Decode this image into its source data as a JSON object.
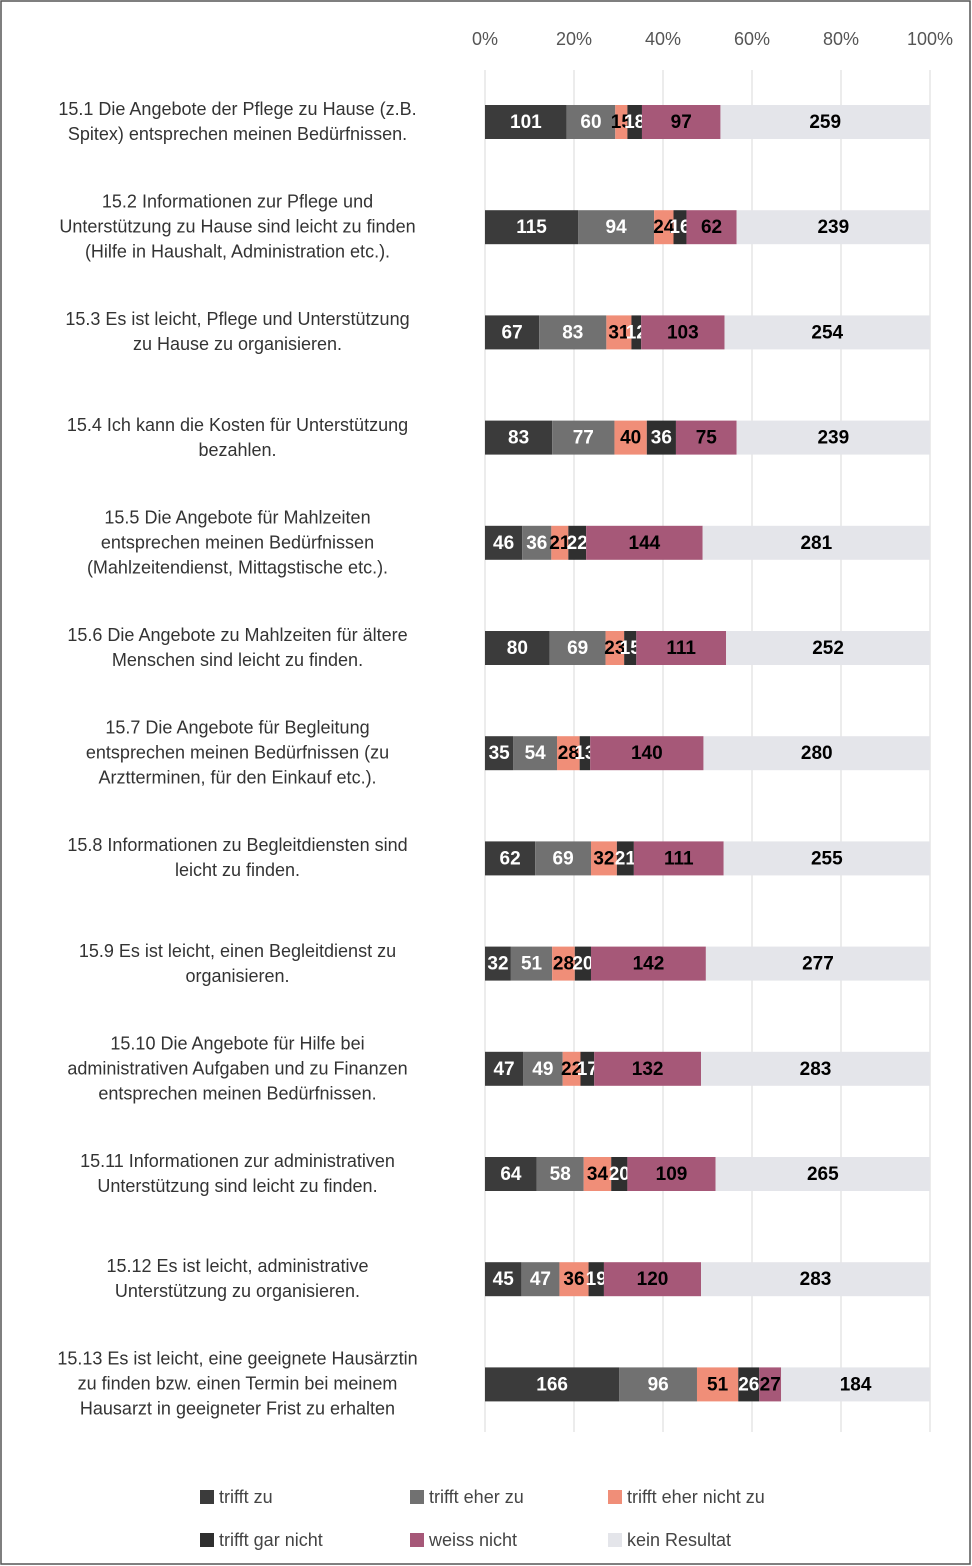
{
  "chart_data": {
    "type": "stacked-bar-100",
    "categories": [
      "15.1 Die Angebote der Pflege zu Hause (z.B.\nSpitex) entsprechen meinen Bedürfnissen.",
      "15.2 Informationen zur Pflege und\nUnterstützung zu Hause sind leicht zu finden\n(Hilfe in Haushalt, Administration etc.).",
      "15.3 Es ist leicht, Pflege und Unterstützung\nzu Hause zu organisieren.",
      "15.4 Ich kann die Kosten für Unterstützung\nbezahlen.",
      "15.5 Die Angebote für Mahlzeiten\nentsprechen meinen Bedürfnissen\n(Mahlzeitendienst, Mittagstische etc.).",
      "15.6 Die Angebote zu Mahlzeiten für ältere\nMenschen sind leicht zu finden.",
      "15.7 Die Angebote für Begleitung\nentsprechen meinen Bedürfnissen (zu\nArztterminen, für den Einkauf etc.).",
      "15.8 Informationen zu Begleitdiensten sind\nleicht zu finden.",
      "15.9 Es ist leicht, einen Begleitdienst zu\norganisieren.",
      "15.10 Die Angebote für Hilfe bei\nadministrativen Aufgaben und zu Finanzen\nentsprechen meinen Bedürfnissen.",
      "15.11 Informationen zur administrativen\nUnterstützung sind leicht zu finden.",
      "15.12 Es ist leicht, administrative\nUnterstützung zu organisieren.",
      "15.13 Es ist leicht, eine geeignete Hausärztin\nzu finden bzw. einen Termin bei meinem\nHausarzt in geeigneter Frist zu erhalten"
    ],
    "series": [
      {
        "name": "trifft zu",
        "color": "#3b3b3b",
        "label_color": "#ffffff",
        "values": [
          101,
          115,
          67,
          83,
          46,
          80,
          35,
          62,
          32,
          47,
          64,
          45,
          166
        ]
      },
      {
        "name": "trifft eher zu",
        "color": "#717171",
        "label_color": "#ffffff",
        "values": [
          60,
          94,
          83,
          77,
          36,
          69,
          54,
          69,
          51,
          49,
          58,
          47,
          96
        ]
      },
      {
        "name": "trifft eher nicht zu",
        "color": "#f08e78",
        "label_color": "#000000",
        "values": [
          15,
          24,
          31,
          40,
          21,
          23,
          28,
          32,
          28,
          22,
          34,
          36,
          51
        ]
      },
      {
        "name": "trifft gar nicht",
        "color": "#2f2f2f",
        "label_color": "#ffffff",
        "values": [
          18,
          16,
          12,
          36,
          22,
          15,
          13,
          21,
          20,
          17,
          20,
          19,
          26
        ]
      },
      {
        "name": "weiss nicht",
        "color": "#a65878",
        "label_color": "#000000",
        "values": [
          97,
          62,
          103,
          75,
          144,
          111,
          140,
          111,
          142,
          132,
          109,
          120,
          27
        ]
      },
      {
        "name": "kein Resultat",
        "color": "#e4e5ea",
        "label_color": "#000000",
        "values": [
          259,
          239,
          254,
          239,
          281,
          252,
          280,
          255,
          277,
          283,
          265,
          283,
          184
        ]
      }
    ],
    "xlim": [
      0,
      100
    ],
    "xticks": [
      {
        "value": 0,
        "label": "0%"
      },
      {
        "value": 20,
        "label": "20%"
      },
      {
        "value": 40,
        "label": "40%"
      },
      {
        "value": 60,
        "label": "60%"
      },
      {
        "value": 80,
        "label": "80%"
      },
      {
        "value": 100,
        "label": "100%"
      }
    ],
    "grid": true
  }
}
